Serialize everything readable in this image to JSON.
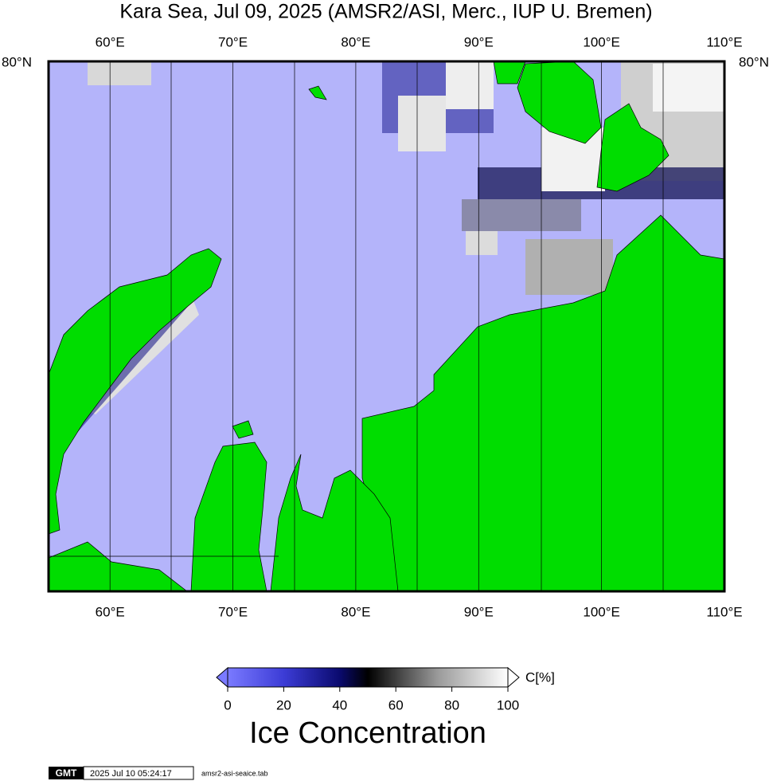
{
  "title": "Kara Sea, Jul 09, 2025 (AMSR2/ASI, Merc., IUP U. Bremen)",
  "map": {
    "lonlim": [
      55,
      110
    ],
    "lon_ticks": [
      {
        "value": 60,
        "label": "60°E"
      },
      {
        "value": 70,
        "label": "70°E"
      },
      {
        "value": 80,
        "label": "80°E"
      },
      {
        "value": 90,
        "label": "90°E"
      },
      {
        "value": 100,
        "label": "100°E"
      },
      {
        "value": 110,
        "label": "110°E"
      }
    ],
    "lat_label": "80°N"
  },
  "colorbar": {
    "lim": [
      0,
      100
    ],
    "ticks": [
      0,
      20,
      40,
      60,
      80,
      100
    ],
    "unit": "C[%]",
    "label": "Ice Concentration"
  },
  "footer": {
    "logo": "GMT",
    "timestamp": "2025 Jul 10 05:24:17",
    "file": "amsr2-asi-seaice.tab"
  }
}
